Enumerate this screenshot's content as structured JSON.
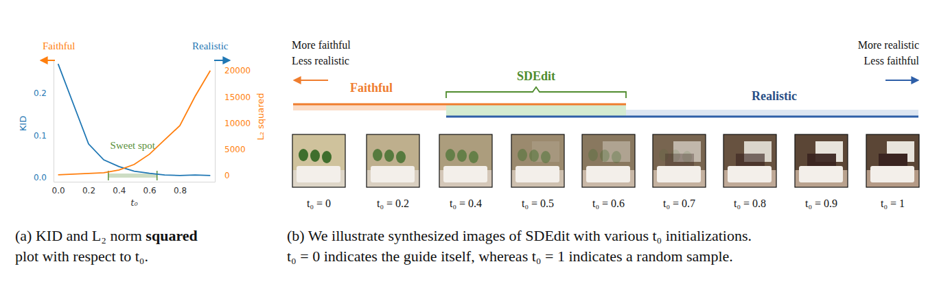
{
  "chart_data": {
    "type": "line",
    "x": [
      0,
      0.1,
      0.2,
      0.3,
      0.4,
      0.5,
      0.6,
      0.7,
      0.8,
      0.9,
      1.0
    ],
    "xlabel": "t₀",
    "ylabel": "KID",
    "y2label": "L₂ squared",
    "xlim": [
      -0.03,
      1.03
    ],
    "xticks": [
      {
        "value": 0,
        "label": "0.0"
      },
      {
        "value": 0.2,
        "label": "0.2"
      },
      {
        "value": 0.4,
        "label": "0.4"
      },
      {
        "value": 0.6,
        "label": "0.6"
      },
      {
        "value": 0.8,
        "label": "0.8"
      }
    ],
    "ylim": [
      -0.01,
      0.28
    ],
    "yticks": [
      {
        "value": 0,
        "label": "0.0"
      },
      {
        "value": 0.1,
        "label": "0.1"
      },
      {
        "value": 0.2,
        "label": "0.2"
      }
    ],
    "y2lim": [
      -1200,
      22100
    ],
    "y2ticks": [
      0,
      5000,
      10000,
      15000,
      20000
    ],
    "grid": false,
    "series": [
      {
        "color": "#1f77b4",
        "values": [
          0.27,
          0.175,
          0.08,
          0.042,
          0.026,
          0.015,
          0.01,
          0.006,
          0.005,
          0.006,
          0.005
        ]
      },
      {
        "color": "#ff7f0e",
        "axis": "y2",
        "values": [
          130,
          250,
          390,
          520,
          1050,
          2100,
          4050,
          6800,
          9500,
          15100,
          20000
        ]
      }
    ],
    "annotations": [
      {
        "text": "Sweet spot",
        "x": [
          0.33,
          0.65
        ],
        "color": "#5a8f3a"
      },
      {
        "text": "Faithful",
        "direction": "left",
        "color": "#ff7f0e"
      },
      {
        "text": "Realistic",
        "direction": "right",
        "color": "#1f77b4"
      }
    ]
  },
  "strip": {
    "left_text": [
      "More faithful",
      "Less realistic"
    ],
    "right_text": [
      "More realistic",
      "Less faithful"
    ],
    "faithful": "Faithful",
    "sdedit": "SDEdit",
    "realistic": "Realistic",
    "images": [
      "t₀ = 0",
      "t₀ = 0.2",
      "t₀ = 0.4",
      "t₀ = 0.5",
      "t₀ = 0.6",
      "t₀ = 0.7",
      "t₀ = 0.8",
      "t₀ = 0.9",
      "t₀ = 1"
    ]
  },
  "captions": {
    "a": [
      [
        {
          "text": "(a) KID and L₂ norm "
        },
        {
          "text": "squared",
          "bold": true
        }
      ],
      [
        {
          "text": "plot with respect to t₀."
        }
      ]
    ],
    "b": [
      [
        {
          "text": "(b) We illustrate synthesized images of SDEdit with various t₀ initializations."
        }
      ],
      [
        {
          "text": "t₀ = 0 indicates the guide itself, whereas t₀ = 1 indicates a random sample."
        }
      ]
    ]
  }
}
